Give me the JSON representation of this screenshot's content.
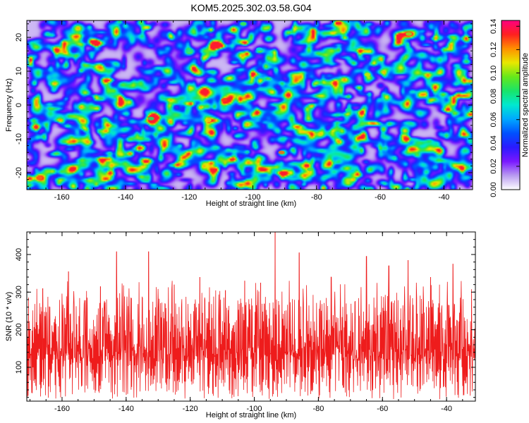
{
  "title": "KOM5.2025.302.03.58.G04",
  "colors": {
    "frame": "#000000",
    "snr_line": "#ee1c1c",
    "colormap": [
      "#ffffff",
      "#b99cf0",
      "#7a18ff",
      "#2a1aff",
      "#0050ff",
      "#00a8ff",
      "#00e8d0",
      "#18e46a",
      "#66e81a",
      "#e8e800",
      "#ff9000",
      "#ff2020",
      "#ff0080"
    ]
  },
  "chart_data": [
    {
      "type": "heatmap",
      "name": "spectrogram",
      "title": "KOM5.2025.302.03.58.G04",
      "xlabel": "Height of straight line (km)",
      "ylabel": "Frequency (Hz)",
      "xlim": [
        -171,
        -31
      ],
      "ylim": [
        -25,
        25
      ],
      "xticks": [
        -160,
        -140,
        -120,
        -100,
        -80,
        -60,
        -40
      ],
      "xtick_labels": [
        "-160",
        "-140",
        "-120",
        "-100",
        "-80",
        "-60",
        "-40"
      ],
      "yticks": [
        -20,
        -10,
        0,
        10,
        20
      ],
      "ytick_labels": [
        "-20",
        "-10",
        "0",
        "10",
        "20"
      ],
      "colorbar": {
        "label": "Normalized spectral amplitude",
        "range": [
          0,
          0.145
        ],
        "ticks": [
          0,
          0.02,
          0.04,
          0.06,
          0.08,
          0.1,
          0.12,
          0.14
        ],
        "tick_labels": [
          "0.00",
          "0.02",
          "0.04",
          "0.06",
          "0.08",
          "0.10",
          "0.12",
          "0.14"
        ]
      },
      "peaks": [
        {
          "x": -167,
          "y": -21.5,
          "value": 0.125
        },
        {
          "x": -109,
          "y": 1.5,
          "value": 0.13
        },
        {
          "x": -91,
          "y": -14,
          "value": 0.125
        },
        {
          "x": -114,
          "y": -4.5,
          "value": 0.11
        },
        {
          "x": -64,
          "y": 9,
          "value": 0.105
        },
        {
          "x": -51,
          "y": 21,
          "value": 0.1
        },
        {
          "x": -103,
          "y": 24,
          "value": 0.09
        },
        {
          "x": -82,
          "y": -19,
          "value": 0.09
        },
        {
          "x": -132,
          "y": -4,
          "value": 0.085
        },
        {
          "x": -70,
          "y": -1.5,
          "value": 0.08
        },
        {
          "x": -120,
          "y": 16,
          "value": 0.08
        },
        {
          "x": -98,
          "y": 16.5,
          "value": 0.07
        }
      ]
    },
    {
      "type": "line",
      "name": "snr",
      "xlabel": "Height of straight line (km)",
      "ylabel": "SNR (10 * v/v)",
      "xlim": [
        -171,
        -31
      ],
      "ylim": [
        10,
        460
      ],
      "xticks": [
        -160,
        -140,
        -120,
        -100,
        -80,
        -60,
        -40
      ],
      "xtick_labels": [
        "-160",
        "-140",
        "-120",
        "-100",
        "-80",
        "-60",
        "-40"
      ],
      "yticks": [
        100,
        200,
        300,
        400
      ],
      "ytick_labels": [
        "100",
        "200",
        "300",
        "400"
      ],
      "series": [
        {
          "name": "SNR",
          "typical_range": [
            40,
            260
          ],
          "peaks": [
            {
              "x": -93.5,
              "y": 460
            },
            {
              "x": -133,
              "y": 408
            },
            {
              "x": -143,
              "y": 408
            },
            {
              "x": -86,
              "y": 405
            },
            {
              "x": -65,
              "y": 395
            },
            {
              "x": -52,
              "y": 385
            },
            {
              "x": -38,
              "y": 375
            },
            {
              "x": -158,
              "y": 355
            },
            {
              "x": -117,
              "y": 340
            },
            {
              "x": -103,
              "y": 330
            },
            {
              "x": -76,
              "y": 340
            },
            {
              "x": -58,
              "y": 370
            },
            {
              "x": -45,
              "y": 340
            },
            {
              "x": -125,
              "y": 320
            },
            {
              "x": -109,
              "y": 305
            },
            {
              "x": -98,
              "y": 325
            },
            {
              "x": -148,
              "y": 315
            },
            {
              "x": -166,
              "y": 310
            }
          ]
        }
      ]
    }
  ]
}
